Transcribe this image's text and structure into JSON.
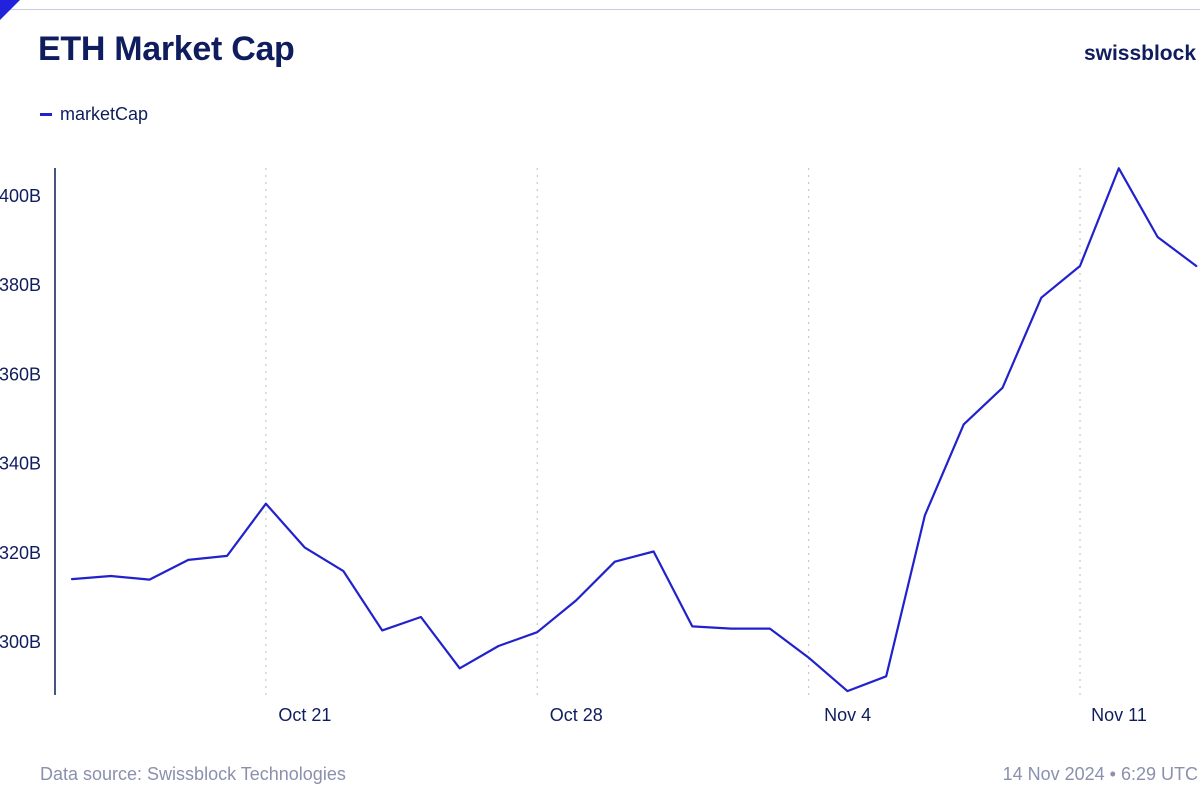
{
  "header": {
    "title": "ETH Market Cap",
    "brand": "swissblock"
  },
  "legend": {
    "label": "marketCap"
  },
  "footer": {
    "source": "Data source: Swissblock Technologies",
    "timestamp": "14 Nov 2024 • 6:29 UTC"
  },
  "colors": {
    "line": "#2222cc",
    "axis": "#0f1d5e",
    "grid": "#c4c7d8"
  },
  "chart_data": {
    "type": "line",
    "title": "ETH Market Cap",
    "xlabel": "",
    "ylabel": "",
    "x_start": "2024-10-16",
    "x_end": "2024-11-14",
    "x_tick_dates": [
      "2024-10-21",
      "2024-10-28",
      "2024-11-04",
      "2024-11-11"
    ],
    "x_tick_labels": [
      "Oct 21",
      "Oct 28",
      "Nov 4",
      "Nov 11"
    ],
    "y_ticks": [
      300,
      320,
      340,
      360,
      380,
      400
    ],
    "y_tick_labels": [
      "300B",
      "320B",
      "340B",
      "360B",
      "380B",
      "400B"
    ],
    "ylim": [
      289,
      406
    ],
    "grid": "vertical dotted at x ticks",
    "legend_placement": "top-left",
    "series": [
      {
        "name": "marketCap",
        "x": [
          "2024-10-16",
          "2024-10-17",
          "2024-10-18",
          "2024-10-19",
          "2024-10-20",
          "2024-10-21",
          "2024-10-22",
          "2024-10-23",
          "2024-10-24",
          "2024-10-25",
          "2024-10-26",
          "2024-10-27",
          "2024-10-28",
          "2024-10-29",
          "2024-10-30",
          "2024-10-31",
          "2024-11-01",
          "2024-11-02",
          "2024-11-03",
          "2024-11-04",
          "2024-11-05",
          "2024-11-06",
          "2024-11-07",
          "2024-11-08",
          "2024-11-09",
          "2024-11-10",
          "2024-11-11",
          "2024-11-12",
          "2024-11-13",
          "2024-11-14"
        ],
        "values": [
          314.1,
          314.8,
          314.0,
          318.4,
          319.3,
          331.0,
          321.2,
          315.9,
          302.6,
          305.6,
          294.1,
          299.1,
          302.2,
          309.3,
          318.0,
          320.3,
          303.5,
          303.0,
          303.0,
          296.5,
          289.0,
          292.3,
          328.4,
          348.8,
          357.0,
          377.2,
          384.3,
          406.2,
          390.8,
          384.3
        ]
      }
    ]
  }
}
